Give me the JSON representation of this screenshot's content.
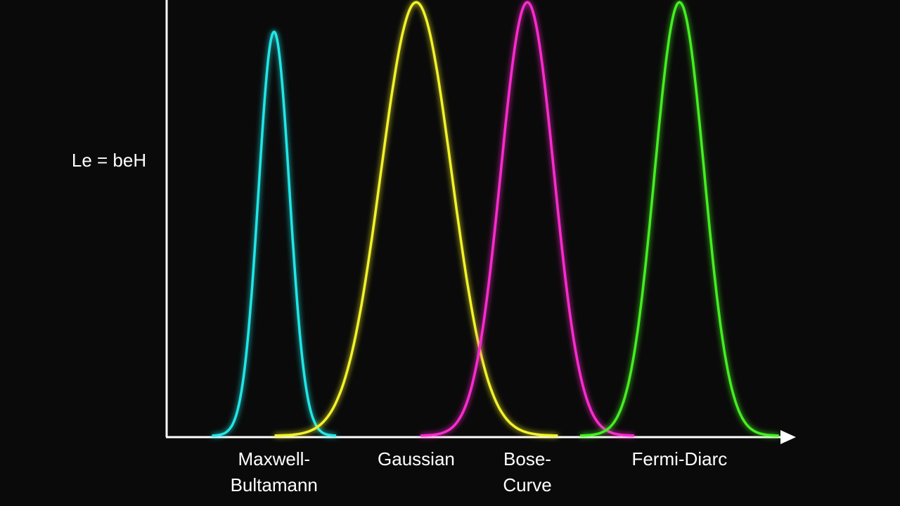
{
  "chart_data": {
    "type": "bell",
    "y_label": "Le = beH",
    "xlim": [
      0,
      100
    ],
    "ylim": [
      0,
      100
    ],
    "series": [
      {
        "name": "Maxwell-\nBultamann",
        "color": "#22e6e6",
        "center": 17.3,
        "peak": 92.7,
        "width": 2.5
      },
      {
        "name": "Gaussian",
        "color": "#f2f22a",
        "center": 40.2,
        "peak": 99.5,
        "width": 5.7
      },
      {
        "name": "Bose-\nCurve",
        "color": "#ff2ccf",
        "center": 58.1,
        "peak": 99.5,
        "width": 4.3
      },
      {
        "name": "Fermi-Diarc",
        "color": "#44ee22",
        "center": 82.6,
        "peak": 99.5,
        "width": 4.0
      }
    ]
  }
}
